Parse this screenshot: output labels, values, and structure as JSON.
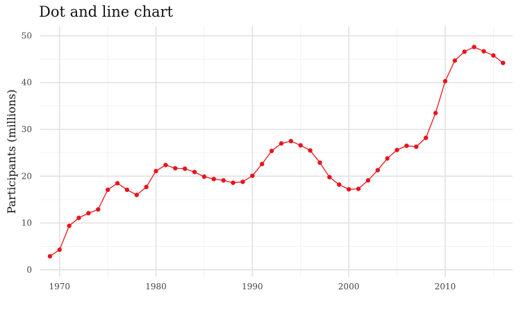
{
  "chart_data": {
    "type": "line",
    "title": "Dot and line chart",
    "xlabel": "",
    "ylabel": "Participants (millions)",
    "xlim": [
      1968,
      2017
    ],
    "ylim": [
      -1.5,
      52
    ],
    "x_ticks": [
      1970,
      1980,
      1990,
      2000,
      2010
    ],
    "y_ticks": [
      0,
      10,
      20,
      30,
      40,
      50
    ],
    "x_minor": [
      1975,
      1985,
      1995,
      2005,
      2015
    ],
    "y_minor": [
      5,
      15,
      25,
      35,
      45
    ],
    "grid": true,
    "legend": "none",
    "line_color": "#e8141b",
    "marker_color": "#e8141b",
    "series": [
      {
        "x": [
          1969,
          1970,
          1971,
          1972,
          1973,
          1974,
          1975,
          1976,
          1977,
          1978,
          1979,
          1980,
          1981,
          1982,
          1983,
          1984,
          1985,
          1986,
          1987,
          1988,
          1989,
          1990,
          1991,
          1992,
          1993,
          1994,
          1995,
          1996,
          1997,
          1998,
          1999,
          2000,
          2001,
          2002,
          2003,
          2004,
          2005,
          2006,
          2007,
          2008,
          2009,
          2010,
          2011,
          2012,
          2013,
          2014,
          2015,
          2016
        ],
        "values": [
          2.9,
          4.3,
          9.4,
          11.1,
          12.1,
          12.9,
          17.1,
          18.5,
          17.1,
          16.0,
          17.7,
          21.1,
          22.4,
          21.7,
          21.6,
          20.9,
          19.9,
          19.4,
          19.1,
          18.6,
          18.8,
          20.1,
          22.6,
          25.4,
          27.0,
          27.5,
          26.6,
          25.5,
          22.9,
          19.8,
          18.2,
          17.2,
          17.3,
          19.1,
          21.3,
          23.8,
          25.6,
          26.5,
          26.3,
          28.2,
          33.5,
          40.3,
          44.7,
          46.6,
          47.6,
          46.7,
          45.8,
          44.2
        ]
      }
    ]
  }
}
